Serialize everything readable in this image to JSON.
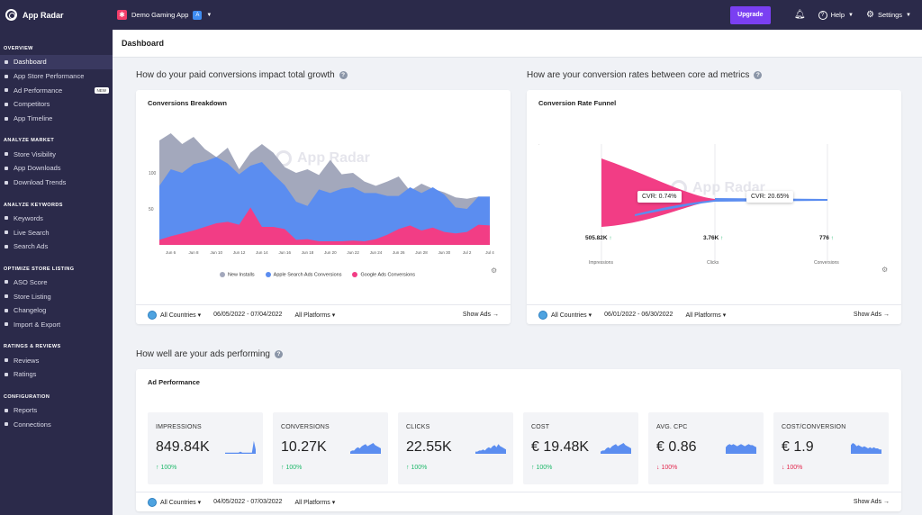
{
  "topbar": {
    "brand": "App Radar",
    "app_name": "Demo Gaming App",
    "upgrade_label": "Upgrade",
    "help_label": "Help",
    "settings_label": "Settings"
  },
  "sidebar": {
    "sections": [
      {
        "title": "OVERVIEW",
        "items": [
          {
            "label": "Dashboard",
            "active": true
          },
          {
            "label": "App Store Performance"
          },
          {
            "label": "Ad Performance",
            "badge": "NEW"
          },
          {
            "label": "Competitors"
          },
          {
            "label": "App Timeline"
          }
        ]
      },
      {
        "title": "ANALYZE MARKET",
        "items": [
          {
            "label": "Store Visibility"
          },
          {
            "label": "App Downloads"
          },
          {
            "label": "Download Trends"
          }
        ]
      },
      {
        "title": "ANALYZE KEYWORDS",
        "items": [
          {
            "label": "Keywords"
          },
          {
            "label": "Live Search"
          },
          {
            "label": "Search Ads"
          }
        ]
      },
      {
        "title": "OPTIMIZE STORE LISTING",
        "items": [
          {
            "label": "ASO Score"
          },
          {
            "label": "Store Listing"
          },
          {
            "label": "Changelog"
          },
          {
            "label": "Import & Export"
          }
        ]
      },
      {
        "title": "RATINGS & REVIEWS",
        "items": [
          {
            "label": "Reviews"
          },
          {
            "label": "Ratings"
          }
        ]
      },
      {
        "title": "CONFIGURATION",
        "items": [
          {
            "label": "Reports"
          },
          {
            "label": "Connections"
          }
        ]
      }
    ]
  },
  "page": {
    "title": "Dashboard",
    "q1": "How do your paid conversions impact total growth",
    "q2": "How are your conversion rates between core ad metrics",
    "q3": "How well are your ads performing"
  },
  "watermark": "App Radar",
  "conversions_card": {
    "title": "Conversions Breakdown",
    "footer": {
      "countries": "All Countries",
      "date_range": "06/05/2022 - 07/04/2022",
      "platforms": "All Platforms",
      "show_ads": "Show Ads"
    }
  },
  "funnel_card": {
    "title": "Conversion Rate Funnel",
    "cvr1": "CVR: 0.74%",
    "cvr2": "CVR: 20.65%",
    "impressions_value": "505.82K",
    "clicks_value": "3.76K",
    "conversions_value": "776",
    "labels": [
      "Impressions",
      "Clicks",
      "Conversions"
    ],
    "footer": {
      "countries": "All Countries",
      "date_range": "06/01/2022 - 06/30/2022",
      "platforms": "All Platforms",
      "show_ads": "Show Ads"
    }
  },
  "ad_card": {
    "title": "Ad Performance",
    "metrics": [
      {
        "label": "IMPRESSIONS",
        "value": "849.84K",
        "delta": "100%",
        "dir": "up"
      },
      {
        "label": "CONVERSIONS",
        "value": "10.27K",
        "delta": "100%",
        "dir": "up"
      },
      {
        "label": "CLICKS",
        "value": "22.55K",
        "delta": "100%",
        "dir": "up"
      },
      {
        "label": "COST",
        "value": "€ 19.48K",
        "delta": "100%",
        "dir": "up"
      },
      {
        "label": "AVG. CPC",
        "value": "€ 0.86",
        "delta": "100%",
        "dir": "down"
      },
      {
        "label": "COST/CONVERSION",
        "value": "€ 1.9",
        "delta": "100%",
        "dir": "down"
      }
    ],
    "footer": {
      "countries": "All Countries",
      "date_range": "04/05/2022 - 07/03/2022",
      "platforms": "All Platforms",
      "show_ads": "Show Ads"
    }
  },
  "chart_data": {
    "type": "area",
    "title": "Conversions Breakdown",
    "categories": [
      "Jun 5",
      "Jun 6",
      "Jun 7",
      "Jun 8",
      "Jun 9",
      "Jun 10",
      "Jun 11",
      "Jun 12",
      "Jun 13",
      "Jun 14",
      "Jun 15",
      "Jun 16",
      "Jun 17",
      "Jun 18",
      "Jun 19",
      "Jun 20",
      "Jun 21",
      "Jun 22",
      "Jun 23",
      "Jun 24",
      "Jun 25",
      "Jun 26",
      "Jun 27",
      "Jun 28",
      "Jun 29",
      "Jun 30",
      "Jul 1",
      "Jul 2",
      "Jul 3",
      "Jul 4"
    ],
    "x_tick_labels": [
      "Jun 6",
      "Jun 8",
      "Jun 10",
      "Jun 12",
      "Jun 14",
      "Jun 16",
      "Jun 18",
      "Jun 20",
      "Jun 22",
      "Jun 24",
      "Jun 26",
      "Jun 28",
      "Jun 30",
      "Jul 2",
      "Jul 4"
    ],
    "y_tick_labels": [
      "50",
      "100"
    ],
    "ylim": [
      0,
      165
    ],
    "series": [
      {
        "name": "New Installs",
        "color": "#a3a8bc",
        "values": [
          145,
          155,
          140,
          150,
          133,
          122,
          135,
          105,
          128,
          140,
          128,
          108,
          100,
          105,
          97,
          118,
          98,
          100,
          88,
          82,
          88,
          95,
          75,
          85,
          78,
          73,
          66,
          64,
          67,
          67
        ]
      },
      {
        "name": "Apple Search Ads Conversions",
        "color": "#5b8df0",
        "values": [
          82,
          105,
          100,
          112,
          116,
          122,
          113,
          98,
          110,
          115,
          98,
          83,
          60,
          54,
          77,
          72,
          78,
          80,
          72,
          72,
          68,
          68,
          80,
          72,
          80,
          70,
          52,
          50,
          67,
          67
        ]
      },
      {
        "name": "Google Ads Conversions",
        "color": "#f23d85",
        "values": [
          7,
          12,
          16,
          20,
          25,
          30,
          32,
          28,
          52,
          25,
          25,
          22,
          7,
          8,
          5,
          5,
          5,
          6,
          5,
          8,
          14,
          22,
          27,
          20,
          24,
          18,
          16,
          18,
          28,
          27
        ]
      }
    ]
  },
  "funnel_data": {
    "type": "funnel",
    "stages": [
      "Impressions",
      "Clicks",
      "Conversions"
    ],
    "values": [
      505820,
      3760,
      776
    ]
  }
}
